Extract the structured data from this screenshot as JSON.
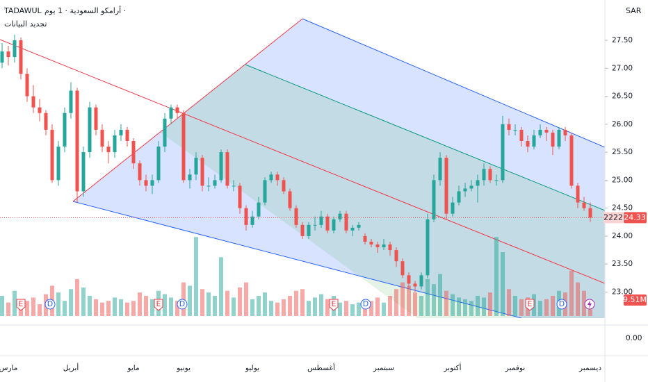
{
  "chart_data": {
    "type": "candlestick",
    "exchange": "TADAWUL",
    "title": "أرامكو السعودية · 1 يوم ·",
    "subtitle": "تجديد البيانات",
    "currency": "SAR",
    "symbol_code": "2222",
    "ylim": [
      22.41,
      28.22
    ],
    "yticks": [
      {
        "value": 23,
        "label": "23.00"
      },
      {
        "value": 23.5,
        "label": "23.50"
      },
      {
        "value": 24,
        "label": "24.00"
      },
      {
        "value": 24.5,
        "label": "24.50"
      },
      {
        "value": 25,
        "label": "25.00"
      },
      {
        "value": 25.5,
        "label": "25.50"
      },
      {
        "value": 26,
        "label": "26.00"
      },
      {
        "value": 26.5,
        "label": "26.50"
      },
      {
        "value": 27,
        "label": "27.00"
      },
      {
        "value": 27.5,
        "label": "27.50"
      }
    ],
    "pane2_yticks": [
      {
        "value": 0,
        "label": "0.00"
      }
    ],
    "xticks": [
      {
        "value": 1,
        "label": "مارس"
      },
      {
        "value": 11,
        "label": "أبريل"
      },
      {
        "value": 21,
        "label": "مايو"
      },
      {
        "value": 29,
        "label": "يونيو"
      },
      {
        "value": 40,
        "label": "يوليو"
      },
      {
        "value": 51,
        "label": "أغسطس"
      },
      {
        "value": 61,
        "label": "سبتمبر"
      },
      {
        "value": 72,
        "label": "أكتوبر"
      },
      {
        "value": 82,
        "label": "نوفمبر"
      },
      {
        "value": 94,
        "label": "ديسمبر"
      }
    ],
    "series": [
      {
        "up_color": "#26a69a",
        "down_color": "#ef5350",
        "ohlc": [
          [
            27.1,
            27.45,
            27.0,
            27.3
          ],
          [
            27.3,
            27.4,
            27.05,
            27.2
          ],
          [
            27.2,
            27.6,
            27.1,
            27.5
          ],
          [
            27.5,
            27.55,
            26.8,
            26.9
          ],
          [
            26.9,
            27.0,
            26.4,
            26.5
          ],
          [
            26.5,
            26.7,
            26.2,
            26.3
          ],
          [
            26.3,
            26.45,
            26.05,
            26.2
          ],
          [
            26.2,
            26.25,
            25.8,
            25.9
          ],
          [
            25.9,
            26.0,
            24.95,
            25.0
          ],
          [
            25.0,
            25.7,
            24.9,
            25.6
          ],
          [
            25.6,
            26.3,
            25.5,
            26.2
          ],
          [
            26.2,
            26.75,
            26.1,
            26.6
          ],
          [
            26.6,
            26.65,
            24.6,
            24.8
          ],
          [
            24.8,
            25.6,
            24.7,
            25.5
          ],
          [
            25.5,
            26.4,
            25.4,
            26.3
          ],
          [
            26.3,
            26.35,
            25.8,
            25.9
          ],
          [
            25.9,
            26.0,
            25.5,
            25.6
          ],
          [
            25.6,
            25.7,
            25.3,
            25.5
          ],
          [
            25.5,
            25.9,
            25.4,
            25.8
          ],
          [
            25.8,
            26.0,
            25.7,
            25.9
          ],
          [
            25.9,
            25.95,
            25.6,
            25.7
          ],
          [
            25.7,
            25.75,
            25.2,
            25.3
          ],
          [
            25.3,
            25.35,
            24.9,
            25.0
          ],
          [
            25.0,
            25.1,
            24.8,
            24.9
          ],
          [
            24.9,
            25.1,
            24.75,
            25.0
          ],
          [
            25.0,
            25.7,
            24.95,
            25.6
          ],
          [
            25.6,
            26.2,
            25.5,
            26.1
          ],
          [
            26.1,
            26.35,
            26.0,
            26.3
          ],
          [
            26.3,
            26.35,
            26.1,
            26.2
          ],
          [
            26.2,
            26.25,
            24.95,
            25.0
          ],
          [
            25.0,
            25.2,
            24.85,
            25.1
          ],
          [
            25.1,
            25.5,
            25.0,
            25.4
          ],
          [
            25.4,
            25.45,
            24.8,
            24.9
          ],
          [
            24.9,
            25.05,
            24.8,
            24.9
          ],
          [
            24.9,
            25.1,
            24.85,
            25.0
          ],
          [
            25.0,
            25.55,
            24.95,
            25.5
          ],
          [
            25.5,
            25.55,
            24.85,
            24.9
          ],
          [
            24.9,
            25.0,
            24.8,
            24.9
          ],
          [
            24.9,
            24.95,
            24.4,
            24.5
          ],
          [
            24.5,
            24.55,
            24.1,
            24.2
          ],
          [
            24.2,
            24.45,
            24.15,
            24.35
          ],
          [
            24.35,
            24.7,
            24.3,
            24.6
          ],
          [
            24.6,
            25.05,
            24.55,
            25.0
          ],
          [
            25.0,
            25.15,
            24.95,
            25.1
          ],
          [
            25.1,
            25.15,
            24.9,
            25.0
          ],
          [
            25.0,
            25.05,
            24.75,
            24.8
          ],
          [
            24.8,
            24.85,
            24.45,
            24.5
          ],
          [
            24.5,
            24.55,
            24.15,
            24.2
          ],
          [
            24.2,
            24.25,
            23.95,
            24.0
          ],
          [
            24.0,
            24.25,
            23.95,
            24.2
          ],
          [
            24.2,
            24.35,
            24.1,
            24.2
          ],
          [
            24.2,
            24.45,
            24.15,
            24.35
          ],
          [
            24.35,
            24.4,
            24.05,
            24.1
          ],
          [
            24.1,
            24.35,
            24.05,
            24.3
          ],
          [
            24.3,
            24.45,
            24.25,
            24.4
          ],
          [
            24.4,
            24.45,
            24.05,
            24.1
          ],
          [
            24.1,
            24.2,
            24.0,
            24.15
          ],
          [
            24.15,
            24.25,
            24.1,
            24.2
          ],
          [
            24.0,
            24.05,
            23.85,
            23.9
          ],
          [
            23.9,
            23.95,
            23.8,
            23.85
          ],
          [
            23.85,
            23.9,
            23.7,
            23.8
          ],
          [
            23.8,
            23.95,
            23.75,
            23.85
          ],
          [
            23.85,
            23.9,
            23.65,
            23.75
          ],
          [
            23.75,
            23.8,
            23.45,
            23.55
          ],
          [
            23.55,
            23.6,
            23.25,
            23.3
          ],
          [
            23.3,
            23.35,
            23.05,
            23.15
          ],
          [
            23.15,
            23.2,
            23.0,
            23.1
          ],
          [
            23.1,
            23.35,
            23.05,
            23.3
          ],
          [
            23.3,
            24.4,
            23.25,
            24.3
          ],
          [
            24.3,
            25.1,
            24.25,
            25.0
          ],
          [
            25.0,
            25.5,
            24.9,
            25.4
          ],
          [
            25.4,
            25.45,
            24.3,
            24.4
          ],
          [
            24.4,
            24.7,
            24.35,
            24.6
          ],
          [
            24.6,
            24.9,
            24.55,
            24.8
          ],
          [
            24.8,
            24.95,
            24.7,
            24.85
          ],
          [
            24.85,
            25.0,
            24.8,
            24.9
          ],
          [
            24.9,
            25.1,
            24.6,
            25.0
          ],
          [
            25.0,
            25.3,
            24.9,
            25.2
          ],
          [
            25.2,
            25.25,
            24.95,
            25.0
          ],
          [
            25.0,
            25.1,
            24.9,
            25.0
          ],
          [
            25.0,
            26.15,
            24.95,
            26.0
          ],
          [
            26.0,
            26.1,
            25.8,
            25.9
          ],
          [
            25.9,
            26.0,
            25.8,
            25.9
          ],
          [
            25.9,
            25.95,
            25.6,
            25.7
          ],
          [
            25.7,
            25.8,
            25.5,
            25.6
          ],
          [
            25.6,
            25.9,
            25.55,
            25.8
          ],
          [
            25.8,
            26.0,
            25.75,
            25.9
          ],
          [
            25.9,
            25.95,
            25.7,
            25.85
          ],
          [
            25.85,
            25.9,
            25.45,
            25.6
          ],
          [
            25.6,
            25.95,
            25.55,
            25.9
          ],
          [
            25.9,
            25.95,
            25.7,
            25.8
          ],
          [
            25.8,
            25.85,
            24.85,
            24.9
          ],
          [
            24.9,
            24.95,
            24.5,
            24.6
          ],
          [
            24.6,
            24.7,
            24.45,
            24.5
          ],
          [
            24.5,
            24.6,
            24.25,
            24.33
          ]
        ]
      }
    ],
    "volume": {
      "ylim": [
        0,
        50
      ],
      "up_color": "rgba(38,166,154,0.5)",
      "down_color": "rgba(239,83,80,0.5)",
      "values": [
        12,
        8,
        15,
        10,
        9,
        11,
        7,
        13,
        18,
        14,
        9,
        16,
        22,
        17,
        12,
        10,
        8,
        9,
        11,
        10,
        8,
        9,
        14,
        12,
        10,
        15,
        13,
        11,
        9,
        20,
        18,
        47,
        16,
        14,
        12,
        35,
        15,
        11,
        17,
        20,
        10,
        12,
        14,
        9,
        8,
        10,
        12,
        15,
        16,
        9,
        11,
        13,
        10,
        12,
        8,
        9,
        7,
        8,
        10,
        9,
        11,
        8,
        12,
        16,
        20,
        18,
        14,
        12,
        22,
        19,
        25,
        15,
        13,
        11,
        10,
        9,
        12,
        11,
        14,
        47,
        38,
        16,
        12,
        10,
        11,
        13,
        9,
        10,
        12,
        15,
        14,
        27,
        20,
        15,
        9.51
      ],
      "value_labels": {
        "94": "9.51M"
      }
    },
    "events": [
      "E",
      "D",
      "E",
      "D",
      "E",
      "D",
      "E",
      "D"
    ]
  }
}
